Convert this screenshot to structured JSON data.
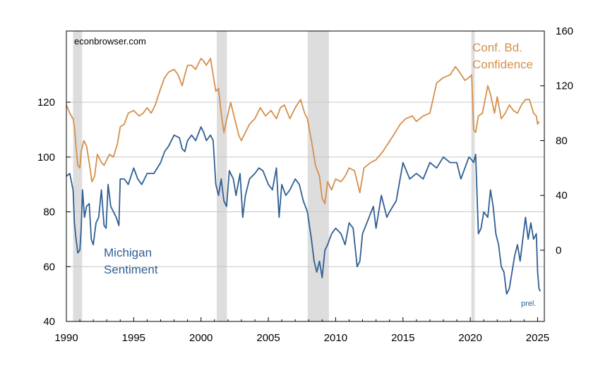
{
  "chart_data": {
    "type": "line",
    "source": "econbrowser.com",
    "xlim": [
      1990,
      2025.5
    ],
    "x_ticks": [
      "1990",
      "1995",
      "2000",
      "2005",
      "2010",
      "2015",
      "2020",
      "2025"
    ],
    "left_axis": {
      "ylim": [
        40,
        146
      ],
      "ticks": [
        "40",
        "60",
        "80",
        "100",
        "120"
      ]
    },
    "right_axis": {
      "ylim": [
        -52,
        160
      ],
      "ticks": [
        "0",
        "40",
        "80",
        "120",
        "160"
      ]
    },
    "recessions": [
      [
        1990.5,
        1991.17
      ],
      [
        2001.17,
        2001.92
      ],
      [
        2007.92,
        2009.5
      ],
      [
        2020.08,
        2020.33
      ]
    ],
    "annotation": "prel.",
    "colors": {
      "michigan": "#2f5f94",
      "conference": "#d58f4a",
      "recession": "#dddddd",
      "grid": "#c8c8c8"
    },
    "series": [
      {
        "name": "Michigan Sentiment",
        "label_lines": [
          "Michigan",
          "Sentiment"
        ],
        "axis": "left",
        "x": [
          1990.0,
          1990.25,
          1990.5,
          1990.6,
          1990.7,
          1990.85,
          1991.0,
          1991.1,
          1991.2,
          1991.35,
          1991.5,
          1991.7,
          1991.85,
          1992.0,
          1992.2,
          1992.4,
          1992.6,
          1992.8,
          1992.95,
          1993.1,
          1993.3,
          1993.5,
          1993.7,
          1993.9,
          1994.0,
          1994.3,
          1994.6,
          1995.0,
          1995.3,
          1995.6,
          1996.0,
          1996.5,
          1997.0,
          1997.3,
          1997.6,
          1998.0,
          1998.4,
          1998.6,
          1998.8,
          1999.0,
          1999.3,
          1999.6,
          2000.0,
          2000.2,
          2000.4,
          2000.7,
          2000.9,
          2001.1,
          2001.3,
          2001.5,
          2001.7,
          2001.9,
          2002.1,
          2002.4,
          2002.6,
          2002.9,
          2003.1,
          2003.3,
          2003.6,
          2004.0,
          2004.3,
          2004.6,
          2005.0,
          2005.3,
          2005.6,
          2005.8,
          2006.0,
          2006.3,
          2006.6,
          2007.0,
          2007.3,
          2007.6,
          2007.9,
          2008.2,
          2008.4,
          2008.6,
          2008.8,
          2009.0,
          2009.2,
          2009.4,
          2009.7,
          2010.0,
          2010.4,
          2010.7,
          2011.0,
          2011.3,
          2011.6,
          2011.8,
          2012.0,
          2012.4,
          2012.8,
          2013.0,
          2013.4,
          2013.8,
          2014.0,
          2014.5,
          2015.0,
          2015.5,
          2016.0,
          2016.5,
          2017.0,
          2017.5,
          2018.0,
          2018.5,
          2019.0,
          2019.3,
          2019.6,
          2019.9,
          2020.1,
          2020.25,
          2020.4,
          2020.6,
          2020.8,
          2021.0,
          2021.3,
          2021.5,
          2021.7,
          2021.9,
          2022.1,
          2022.3,
          2022.5,
          2022.7,
          2022.9,
          2023.1,
          2023.3,
          2023.5,
          2023.7,
          2023.9,
          2024.1,
          2024.3,
          2024.5,
          2024.7,
          2024.9,
          2025.0,
          2025.1,
          2025.2
        ],
        "values": [
          93,
          94,
          88,
          76,
          71,
          65,
          66,
          74,
          88,
          78,
          82,
          83,
          70,
          68,
          76,
          78,
          88,
          75,
          74,
          90,
          82,
          80,
          78,
          75,
          92,
          92,
          90,
          96,
          92,
          90,
          94,
          94,
          98,
          102,
          104,
          108,
          107,
          103,
          102,
          106,
          108,
          106,
          111,
          109,
          106,
          108,
          106,
          90,
          86,
          92,
          84,
          82,
          95,
          92,
          86,
          94,
          78,
          86,
          92,
          94,
          96,
          95,
          90,
          88,
          96,
          78,
          90,
          86,
          88,
          92,
          90,
          84,
          80,
          70,
          62,
          58,
          62,
          56,
          66,
          68,
          72,
          74,
          72,
          68,
          76,
          74,
          60,
          62,
          72,
          77,
          82,
          74,
          86,
          78,
          80,
          84,
          98,
          92,
          94,
          92,
          98,
          96,
          100,
          98,
          98,
          92,
          96,
          100,
          99,
          98,
          101,
          72,
          74,
          80,
          78,
          88,
          82,
          72,
          68,
          60,
          58,
          50,
          52,
          58,
          64,
          68,
          62,
          70,
          78,
          70,
          76,
          70,
          72,
          58,
          52,
          51
        ]
      },
      {
        "name": "Conf. Bd. Confidence",
        "label_lines": [
          "Conf. Bd.",
          "Confidence"
        ],
        "axis": "right",
        "x": [
          1990.0,
          1990.25,
          1990.5,
          1990.6,
          1990.7,
          1990.85,
          1991.0,
          1991.1,
          1991.3,
          1991.5,
          1991.7,
          1991.9,
          1992.1,
          1992.3,
          1992.6,
          1992.8,
          1993.0,
          1993.2,
          1993.5,
          1993.8,
          1994.0,
          1994.3,
          1994.6,
          1995.0,
          1995.4,
          1995.7,
          1996.0,
          1996.3,
          1996.6,
          1997.0,
          1997.3,
          1997.6,
          1998.0,
          1998.3,
          1998.6,
          1998.8,
          1999.0,
          1999.3,
          1999.6,
          2000.0,
          2000.2,
          2000.4,
          2000.7,
          2000.9,
          2001.1,
          2001.3,
          2001.5,
          2001.7,
          2001.9,
          2002.2,
          2002.5,
          2002.8,
          2003.0,
          2003.3,
          2003.6,
          2004.0,
          2004.4,
          2004.8,
          2005.2,
          2005.6,
          2005.9,
          2006.2,
          2006.6,
          2007.0,
          2007.4,
          2007.7,
          2007.9,
          2008.2,
          2008.5,
          2008.8,
          2009.0,
          2009.2,
          2009.4,
          2009.7,
          2010.0,
          2010.4,
          2010.7,
          2011.0,
          2011.4,
          2011.8,
          2012.1,
          2012.6,
          2013.0,
          2013.5,
          2013.9,
          2014.3,
          2014.8,
          2015.2,
          2015.7,
          2016.0,
          2016.5,
          2017.0,
          2017.5,
          2018.0,
          2018.5,
          2018.9,
          2019.2,
          2019.6,
          2019.9,
          2020.1,
          2020.25,
          2020.4,
          2020.6,
          2020.9,
          2021.1,
          2021.3,
          2021.5,
          2021.8,
          2022.0,
          2022.3,
          2022.6,
          2022.9,
          2023.2,
          2023.5,
          2023.8,
          2024.1,
          2024.4,
          2024.7,
          2024.9,
          2025.0,
          2025.1
        ],
        "values": [
          106,
          100,
          96,
          90,
          78,
          62,
          60,
          72,
          80,
          76,
          64,
          50,
          54,
          70,
          64,
          62,
          66,
          70,
          68,
          78,
          90,
          92,
          100,
          102,
          98,
          100,
          104,
          100,
          106,
          118,
          126,
          130,
          132,
          128,
          120,
          128,
          135,
          135,
          132,
          140,
          138,
          135,
          140,
          128,
          116,
          118,
          100,
          86,
          95,
          108,
          96,
          84,
          80,
          86,
          92,
          96,
          104,
          98,
          102,
          96,
          104,
          106,
          96,
          104,
          110,
          100,
          96,
          80,
          62,
          54,
          38,
          34,
          50,
          44,
          52,
          50,
          54,
          60,
          58,
          42,
          60,
          64,
          66,
          72,
          78,
          84,
          92,
          96,
          98,
          94,
          98,
          100,
          122,
          126,
          128,
          134,
          130,
          124,
          126,
          128,
          88,
          86,
          98,
          100,
          110,
          120,
          114,
          100,
          112,
          96,
          100,
          106,
          102,
          100,
          106,
          110,
          110,
          100,
          98,
          92,
          94
        ]
      }
    ]
  }
}
